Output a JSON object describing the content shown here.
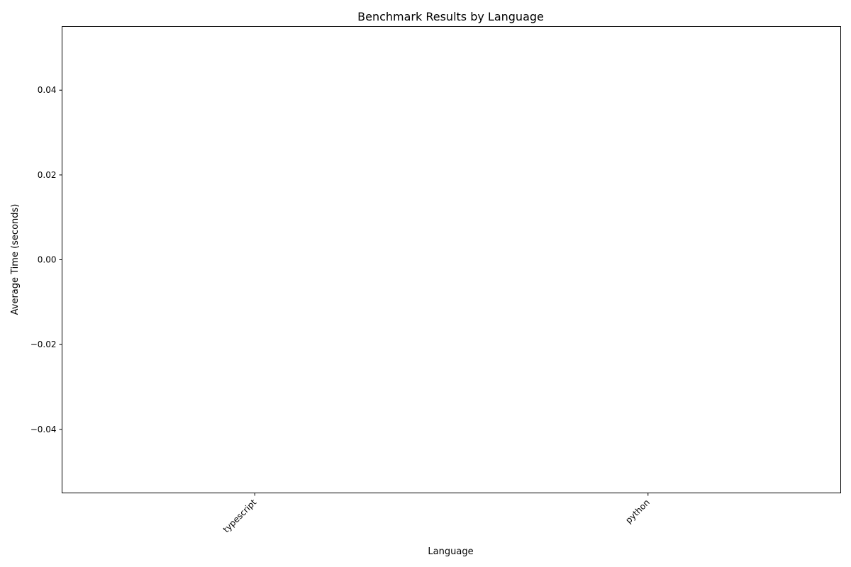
{
  "chart_data": {
    "type": "bar",
    "title": "Benchmark Results by Language",
    "xlabel": "Language",
    "ylabel": "Average Time (seconds)",
    "categories": [
      "typescript",
      "python"
    ],
    "values": [
      null,
      null
    ],
    "ylim": [
      -0.055,
      0.055
    ],
    "yticks": [
      -0.04,
      -0.02,
      0.0,
      0.02,
      0.04
    ],
    "ytick_labels": [
      "−0.04",
      "−0.02",
      "0.00",
      "0.02",
      "0.04"
    ],
    "grid": false,
    "legend": "none",
    "colors": {
      "axis": "#000000",
      "background": "#ffffff",
      "text": "#000000"
    }
  }
}
